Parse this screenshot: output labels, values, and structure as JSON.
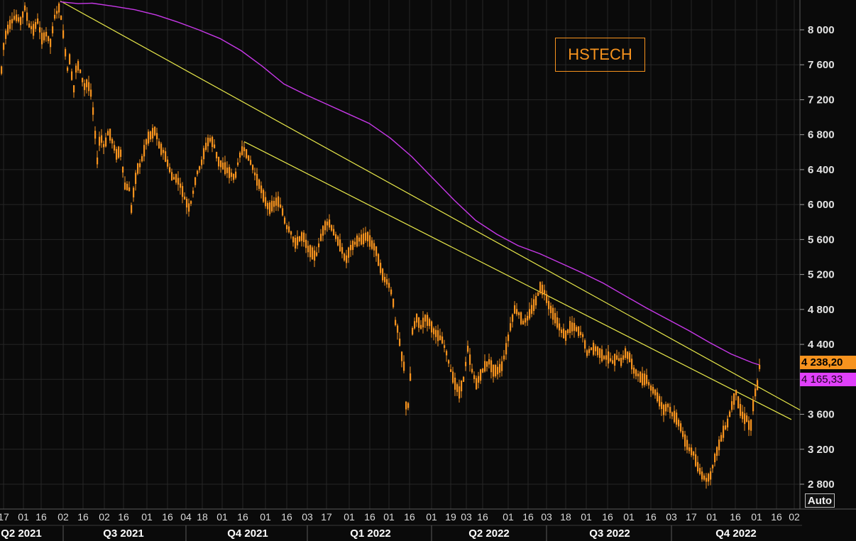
{
  "chart_data": {
    "type": "candlestick",
    "title": "HSTECH",
    "y_axis": {
      "position": "right",
      "ticks": [
        2800,
        3200,
        3600,
        4000,
        4400,
        4800,
        5200,
        5600,
        6000,
        6400,
        6800,
        7200,
        7600,
        8000
      ],
      "tick_labels": [
        "2 800",
        "3 200",
        "3 600",
        "4 000",
        "4 400",
        "4 800",
        "5 200",
        "5 600",
        "6 000",
        "6 400",
        "6 800",
        "7 200",
        "7 600",
        "8 000"
      ],
      "range": [
        2600,
        8330
      ]
    },
    "x_axis": {
      "day_ticks": [
        "17",
        "01",
        "16",
        "02",
        "16",
        "02",
        "16",
        "01",
        "16",
        "04",
        "18",
        "01",
        "16",
        "01",
        "16",
        "03",
        "17",
        "01",
        "16",
        "01",
        "16",
        "01",
        "19",
        "03",
        "16",
        "01",
        "16",
        "03",
        "18",
        "01",
        "16",
        "01",
        "16",
        "03",
        "17",
        "01",
        "16",
        "01",
        "16",
        "02"
      ],
      "quarters": [
        "Q2 2021",
        "Q3 2021",
        "Q4 2021",
        "Q1 2022",
        "Q2 2022",
        "Q3 2022",
        "Q4 2022"
      ]
    },
    "last_price_label": "4 238,20",
    "moving_average_label": "4 165,33",
    "auto_button_label": "Auto",
    "colors": {
      "background": "#0a0a0a",
      "candles": "#f7931e",
      "moving_average": "#c738e8",
      "trendlines": "#e8e84a",
      "grid": "#262626"
    },
    "price_path": [
      [
        0,
        7450
      ],
      [
        5,
        7900
      ],
      [
        12,
        8050
      ],
      [
        20,
        8150
      ],
      [
        28,
        8100
      ],
      [
        34,
        8250
      ],
      [
        40,
        8050
      ],
      [
        46,
        8000
      ],
      [
        52,
        8100
      ],
      [
        58,
        7900
      ],
      [
        64,
        7950
      ],
      [
        70,
        7850
      ],
      [
        76,
        8150
      ],
      [
        82,
        8250
      ],
      [
        86,
        8100
      ],
      [
        90,
        7800
      ],
      [
        94,
        7550
      ],
      [
        98,
        7700
      ],
      [
        102,
        7250
      ],
      [
        106,
        7550
      ],
      [
        110,
        7600
      ],
      [
        114,
        7450
      ],
      [
        118,
        7350
      ],
      [
        122,
        7400
      ],
      [
        128,
        7250
      ],
      [
        133,
        6800
      ],
      [
        136,
        6500
      ],
      [
        140,
        6800
      ],
      [
        146,
        6650
      ],
      [
        152,
        6850
      ],
      [
        158,
        6700
      ],
      [
        164,
        6550
      ],
      [
        168,
        6650
      ],
      [
        172,
        6400
      ],
      [
        176,
        6150
      ],
      [
        180,
        6250
      ],
      [
        184,
        5950
      ],
      [
        188,
        6200
      ],
      [
        192,
        6400
      ],
      [
        196,
        6450
      ],
      [
        200,
        6550
      ],
      [
        206,
        6750
      ],
      [
        212,
        6800
      ],
      [
        218,
        6850
      ],
      [
        224,
        6650
      ],
      [
        230,
        6600
      ],
      [
        236,
        6450
      ],
      [
        242,
        6300
      ],
      [
        248,
        6300
      ],
      [
        254,
        6200
      ],
      [
        260,
        6050
      ],
      [
        266,
        5950
      ],
      [
        270,
        6100
      ],
      [
        276,
        6350
      ],
      [
        282,
        6450
      ],
      [
        288,
        6650
      ],
      [
        294,
        6750
      ],
      [
        300,
        6700
      ],
      [
        306,
        6500
      ],
      [
        312,
        6450
      ],
      [
        318,
        6400
      ],
      [
        324,
        6350
      ],
      [
        330,
        6300
      ],
      [
        336,
        6550
      ],
      [
        342,
        6650
      ],
      [
        348,
        6550
      ],
      [
        354,
        6450
      ],
      [
        360,
        6300
      ],
      [
        366,
        6200
      ],
      [
        372,
        6050
      ],
      [
        378,
        5950
      ],
      [
        384,
        6000
      ],
      [
        390,
        6050
      ],
      [
        396,
        5950
      ],
      [
        402,
        5750
      ],
      [
        408,
        5700
      ],
      [
        414,
        5550
      ],
      [
        420,
        5600
      ],
      [
        426,
        5650
      ],
      [
        432,
        5500
      ],
      [
        438,
        5450
      ],
      [
        444,
        5400
      ],
      [
        450,
        5600
      ],
      [
        456,
        5750
      ],
      [
        462,
        5800
      ],
      [
        468,
        5700
      ],
      [
        474,
        5600
      ],
      [
        480,
        5500
      ],
      [
        486,
        5350
      ],
      [
        492,
        5500
      ],
      [
        498,
        5550
      ],
      [
        504,
        5600
      ],
      [
        510,
        5600
      ],
      [
        516,
        5650
      ],
      [
        522,
        5550
      ],
      [
        528,
        5500
      ],
      [
        534,
        5300
      ],
      [
        540,
        5150
      ],
      [
        546,
        5100
      ],
      [
        552,
        4950
      ],
      [
        556,
        4650
      ],
      [
        560,
        4550
      ],
      [
        564,
        4300
      ],
      [
        568,
        4150
      ],
      [
        572,
        3550
      ],
      [
        576,
        3850
      ],
      [
        580,
        4550
      ],
      [
        586,
        4700
      ],
      [
        592,
        4600
      ],
      [
        598,
        4700
      ],
      [
        604,
        4650
      ],
      [
        610,
        4550
      ],
      [
        616,
        4500
      ],
      [
        622,
        4450
      ],
      [
        628,
        4300
      ],
      [
        634,
        4100
      ],
      [
        640,
        3950
      ],
      [
        646,
        3850
      ],
      [
        652,
        4000
      ],
      [
        658,
        4350
      ],
      [
        664,
        4100
      ],
      [
        670,
        3950
      ],
      [
        676,
        4050
      ],
      [
        682,
        4150
      ],
      [
        688,
        4200
      ],
      [
        694,
        4100
      ],
      [
        700,
        4100
      ],
      [
        706,
        4150
      ],
      [
        712,
        4350
      ],
      [
        718,
        4600
      ],
      [
        724,
        4800
      ],
      [
        730,
        4750
      ],
      [
        736,
        4650
      ],
      [
        742,
        4700
      ],
      [
        748,
        4800
      ],
      [
        754,
        4900
      ],
      [
        760,
        5050
      ],
      [
        766,
        5000
      ],
      [
        772,
        4850
      ],
      [
        778,
        4750
      ],
      [
        784,
        4650
      ],
      [
        790,
        4550
      ],
      [
        796,
        4500
      ],
      [
        802,
        4600
      ],
      [
        808,
        4600
      ],
      [
        814,
        4550
      ],
      [
        820,
        4500
      ],
      [
        826,
        4300
      ],
      [
        832,
        4350
      ],
      [
        838,
        4350
      ],
      [
        844,
        4300
      ],
      [
        850,
        4250
      ],
      [
        856,
        4250
      ],
      [
        862,
        4200
      ],
      [
        868,
        4250
      ],
      [
        874,
        4200
      ],
      [
        880,
        4300
      ],
      [
        886,
        4250
      ],
      [
        892,
        4100
      ],
      [
        898,
        4050
      ],
      [
        904,
        4000
      ],
      [
        910,
        4000
      ],
      [
        916,
        3900
      ],
      [
        922,
        3850
      ],
      [
        928,
        3750
      ],
      [
        934,
        3650
      ],
      [
        940,
        3700
      ],
      [
        946,
        3600
      ],
      [
        952,
        3550
      ],
      [
        958,
        3450
      ],
      [
        964,
        3300
      ],
      [
        970,
        3200
      ],
      [
        976,
        3150
      ],
      [
        982,
        3000
      ],
      [
        988,
        2900
      ],
      [
        994,
        2850
      ],
      [
        1000,
        2900
      ],
      [
        1006,
        3100
      ],
      [
        1012,
        3250
      ],
      [
        1018,
        3400
      ],
      [
        1024,
        3500
      ],
      [
        1030,
        3700
      ],
      [
        1036,
        3850
      ],
      [
        1040,
        3700
      ],
      [
        1044,
        3600
      ],
      [
        1048,
        3550
      ],
      [
        1052,
        3550
      ],
      [
        1056,
        3400
      ],
      [
        1060,
        3700
      ],
      [
        1064,
        3900
      ],
      [
        1067,
        3950
      ],
      [
        1070,
        4238.2
      ]
    ],
    "moving_average_path": [
      [
        85,
        8320
      ],
      [
        110,
        8300
      ],
      [
        130,
        8305
      ],
      [
        160,
        8270
      ],
      [
        190,
        8230
      ],
      [
        220,
        8170
      ],
      [
        250,
        8090
      ],
      [
        280,
        8000
      ],
      [
        310,
        7900
      ],
      [
        340,
        7760
      ],
      [
        370,
        7580
      ],
      [
        400,
        7380
      ],
      [
        430,
        7260
      ],
      [
        460,
        7150
      ],
      [
        490,
        7040
      ],
      [
        520,
        6930
      ],
      [
        550,
        6760
      ],
      [
        580,
        6550
      ],
      [
        610,
        6300
      ],
      [
        640,
        6050
      ],
      [
        670,
        5820
      ],
      [
        700,
        5660
      ],
      [
        730,
        5530
      ],
      [
        760,
        5440
      ],
      [
        790,
        5330
      ],
      [
        820,
        5220
      ],
      [
        850,
        5100
      ],
      [
        880,
        4960
      ],
      [
        910,
        4820
      ],
      [
        940,
        4690
      ],
      [
        970,
        4560
      ],
      [
        1000,
        4420
      ],
      [
        1030,
        4290
      ],
      [
        1060,
        4190
      ],
      [
        1070,
        4165.33
      ]
    ],
    "trendlines": [
      {
        "points": [
          [
            85,
            8330
          ],
          [
            1127,
            3650
          ]
        ]
      },
      {
        "points": [
          [
            344,
            6720
          ],
          [
            1115,
            3540
          ]
        ]
      }
    ]
  }
}
